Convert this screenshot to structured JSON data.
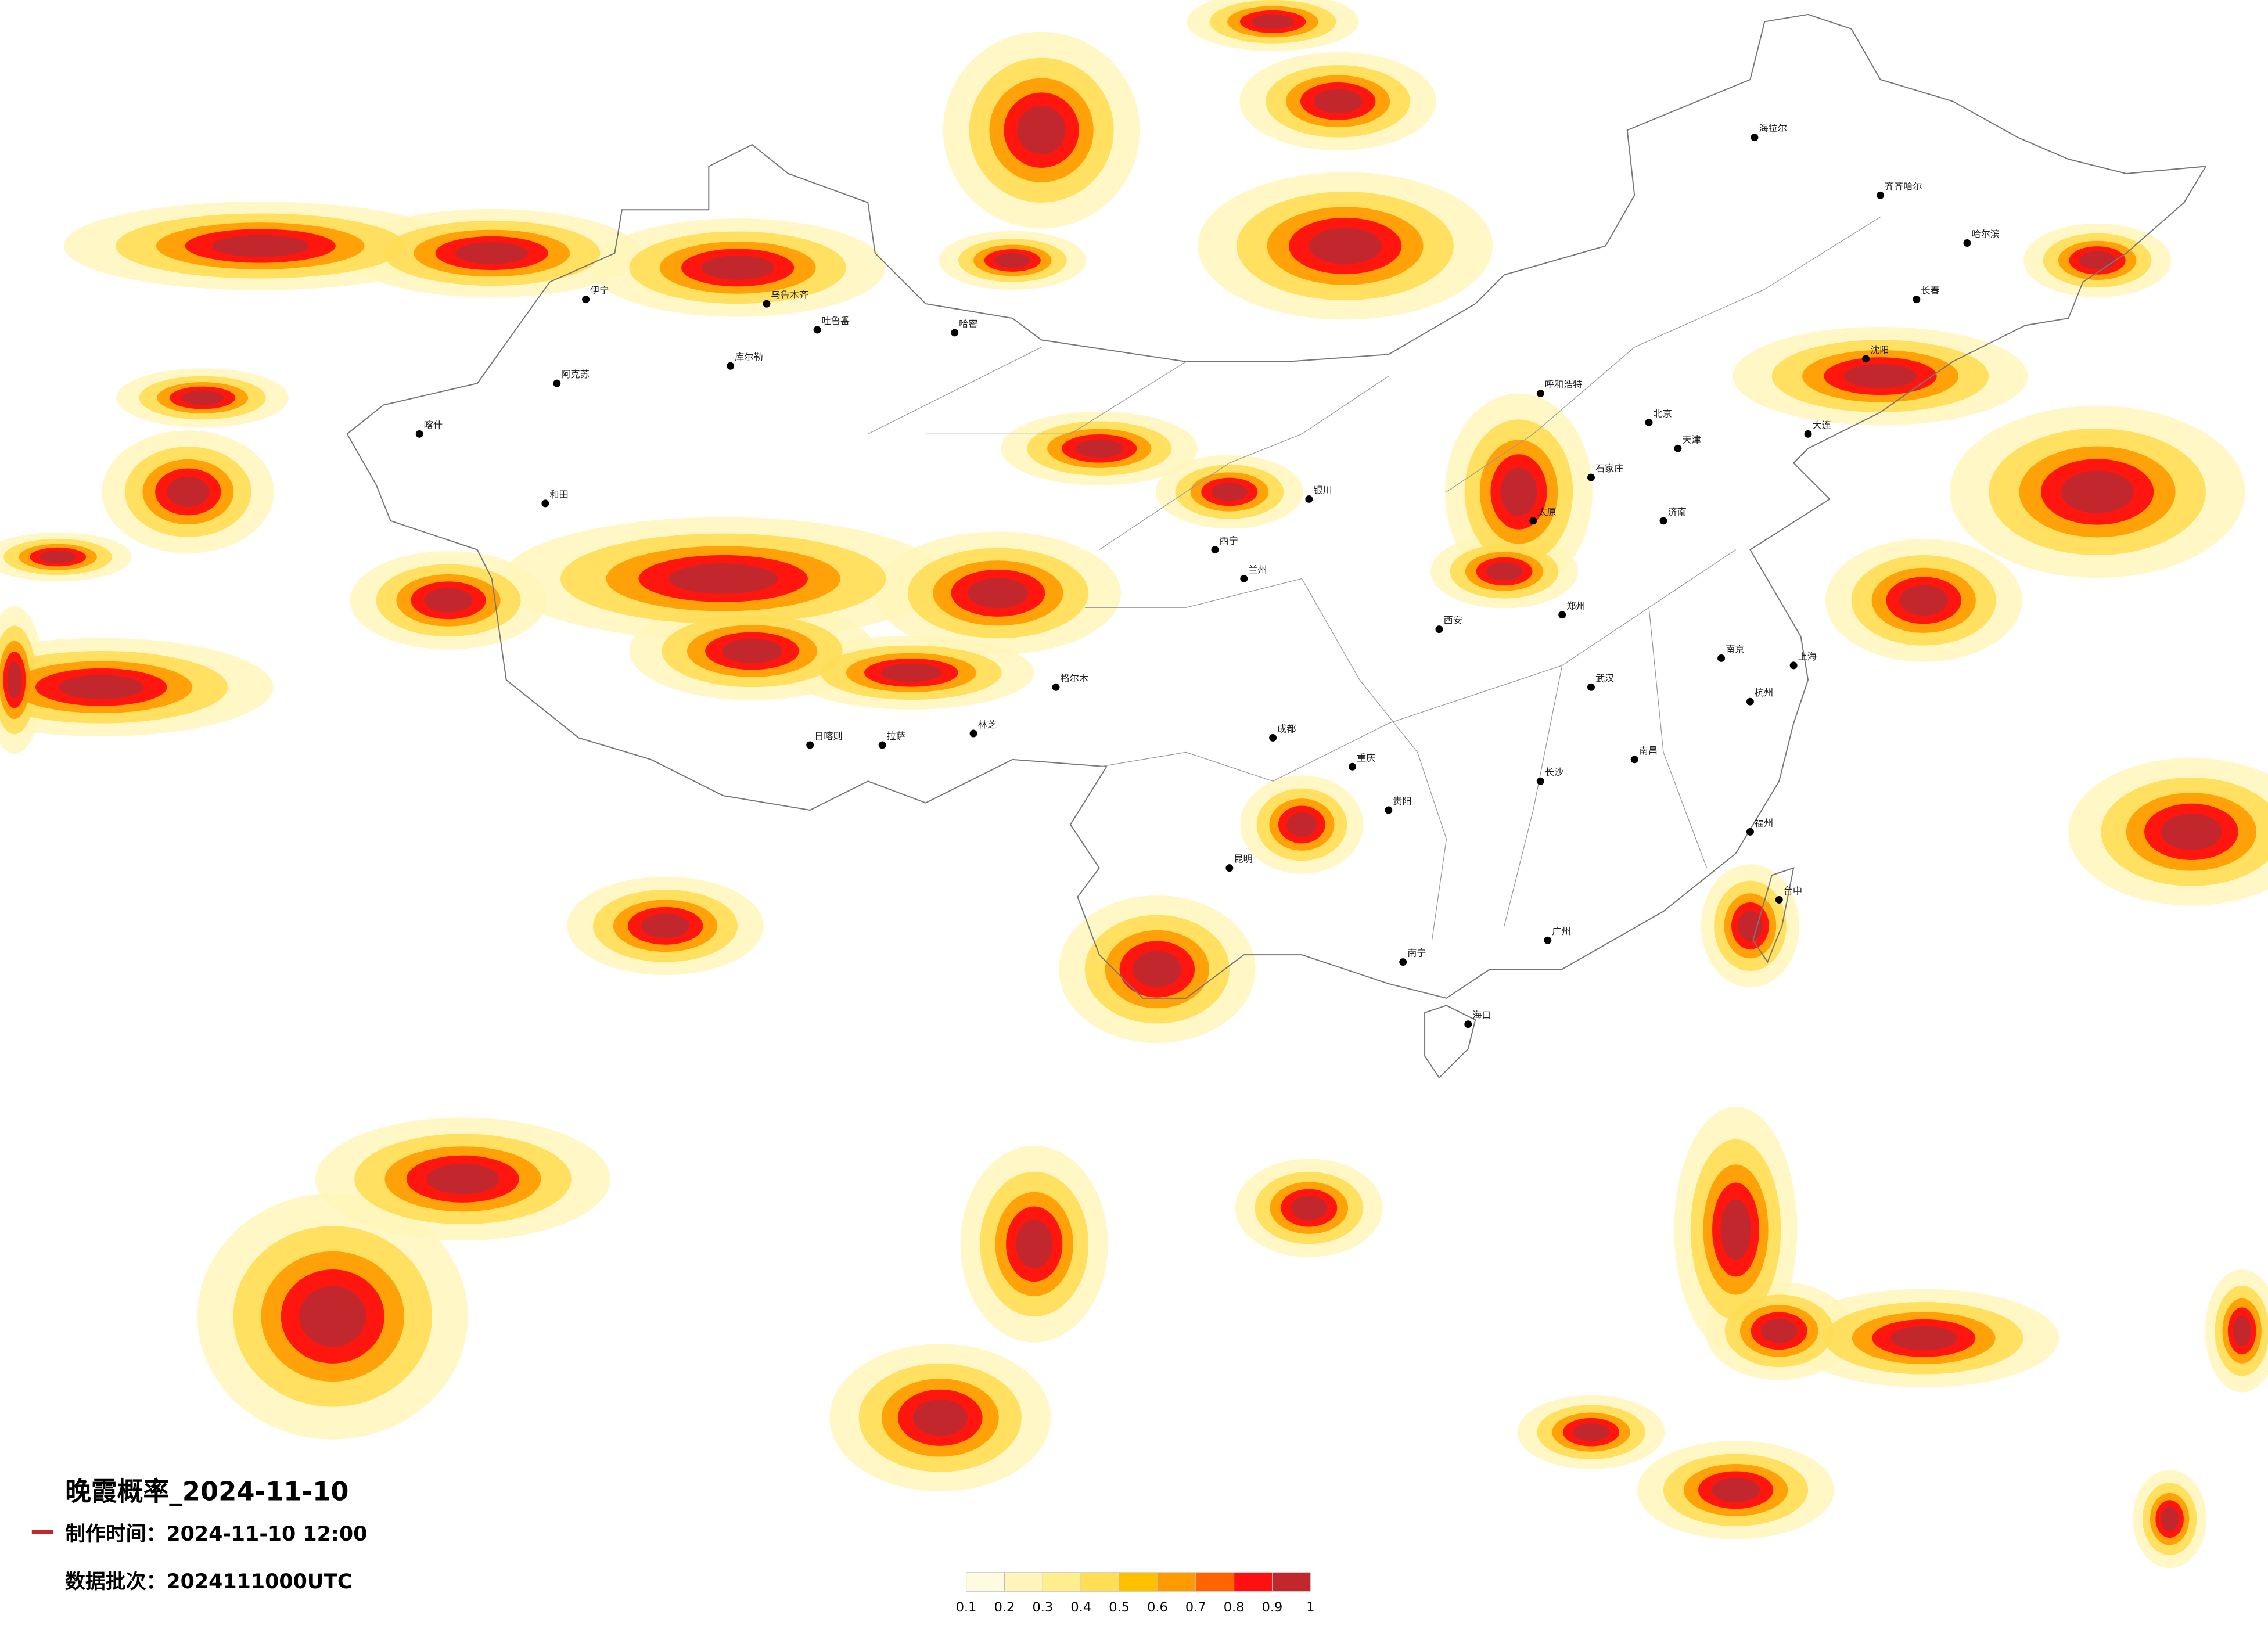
{
  "title": "晚霞概率_2024-11-10",
  "made_time": "制作时间：2024-11-10 12:00",
  "data_batch": "数据批次：2024111000UTC",
  "colorbar": {
    "colors": [
      "#fffbe0",
      "#fff5b8",
      "#ffee8c",
      "#ffdd55",
      "#ffc000",
      "#ff9a00",
      "#ff6400",
      "#ff1010",
      "#c1272d"
    ],
    "ticks": [
      0.1,
      0.2,
      0.3,
      0.4,
      0.5,
      0.6,
      0.7,
      0.8,
      0.9,
      1
    ]
  },
  "cities": [
    "伊宁",
    "乌鲁木齐",
    "吐鲁番",
    "哈密",
    "库尔勒",
    "阿克苏",
    "喀什",
    "和田",
    "格尔木",
    "拉萨",
    "日喀则",
    "林芝",
    "西宁",
    "兰州",
    "银川",
    "呼和浩特",
    "北京",
    "天津",
    "石家庄",
    "太原",
    "济南",
    "郑州",
    "西安",
    "成都",
    "重庆",
    "武汉",
    "长沙",
    "南昌",
    "杭州",
    "上海",
    "南京",
    "福州",
    "广州",
    "南宁",
    "昆明",
    "贵阳",
    "海口",
    "台中",
    "哈尔滨",
    "长春",
    "沈阳",
    "大连",
    "海拉尔",
    "齐齐哈尔"
  ]
}
